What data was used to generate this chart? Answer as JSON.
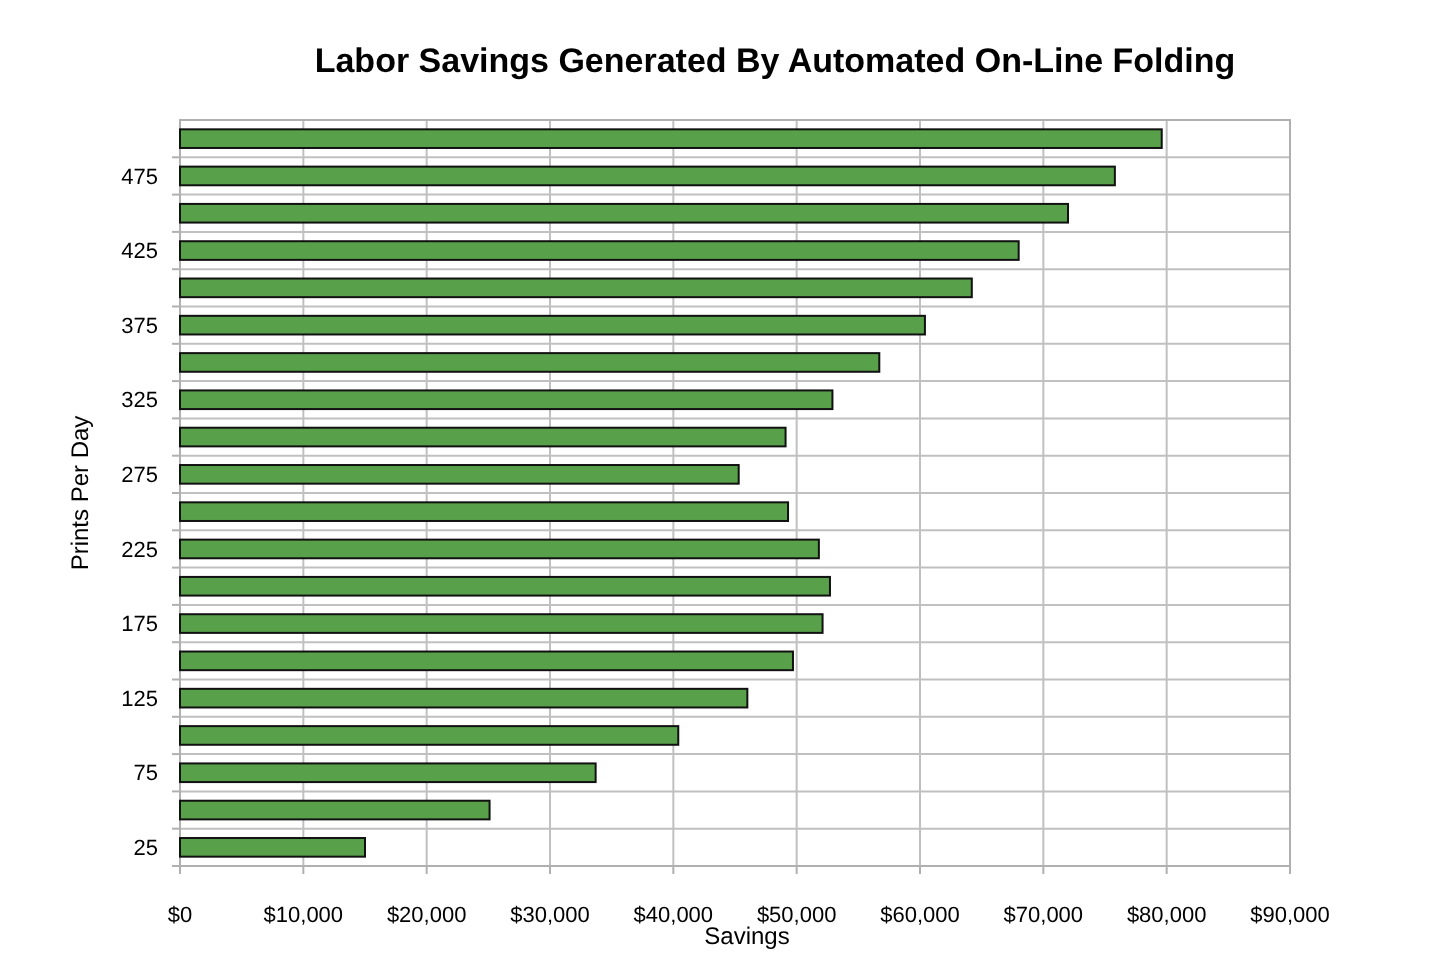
{
  "chart_data": {
    "type": "bar",
    "orientation": "horizontal",
    "title": "Labor Savings Generated By Automated On-Line Folding",
    "xlabel": "Savings",
    "ylabel": "Prints Per Day",
    "categories": [
      null,
      "475",
      null,
      "425",
      null,
      "375",
      null,
      "325",
      null,
      "275",
      null,
      "225",
      null,
      "175",
      null,
      "125",
      null,
      "75",
      null,
      "25"
    ],
    "values": [
      79600,
      75800,
      72000,
      68000,
      64200,
      60400,
      56700,
      52900,
      49100,
      45300,
      49300,
      51800,
      52700,
      52100,
      49700,
      46000,
      40400,
      33700,
      25100,
      15000
    ],
    "color": "#58a14a",
    "xlim": [
      0,
      90000
    ],
    "xticks": [
      {
        "value": 0,
        "label": "$0"
      },
      {
        "value": 10000,
        "label": "$10,000"
      },
      {
        "value": 20000,
        "label": "$20,000"
      },
      {
        "value": 30000,
        "label": "$30,000"
      },
      {
        "value": 40000,
        "label": "$40,000"
      },
      {
        "value": 50000,
        "label": "$50,000"
      },
      {
        "value": 60000,
        "label": "$60,000"
      },
      {
        "value": 70000,
        "label": "$70,000"
      },
      {
        "value": 80000,
        "label": "$80,000"
      },
      {
        "value": 90000,
        "label": "$90,000"
      }
    ],
    "grid": true
  }
}
